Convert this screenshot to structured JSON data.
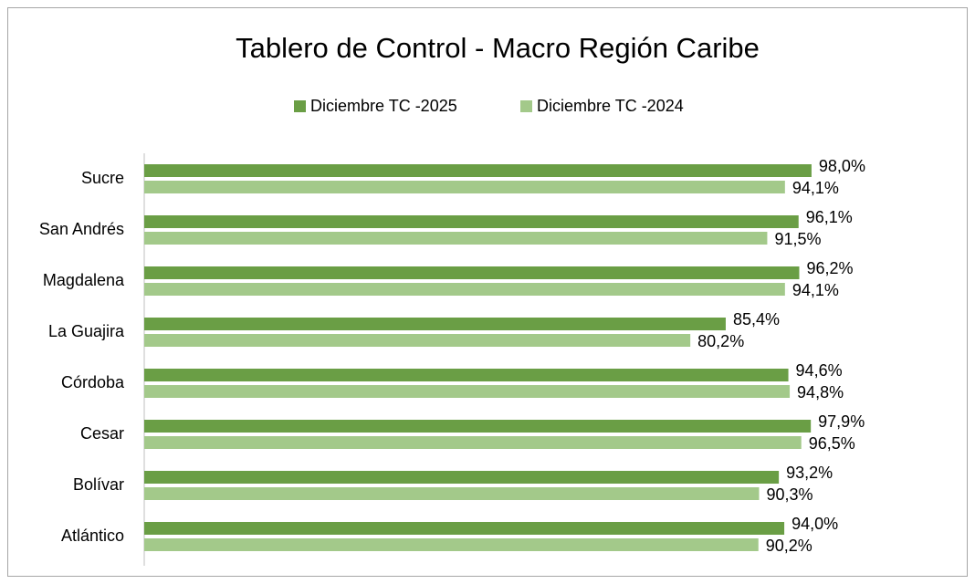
{
  "chart_data": {
    "type": "bar",
    "orientation": "horizontal",
    "title": "Tablero de Control - Macro Región Caribe",
    "categories": [
      "Sucre",
      "San Andrés",
      "Magdalena",
      "La Guajira",
      "Córdoba",
      "Cesar",
      "Bolívar",
      "Atlántico"
    ],
    "series": [
      {
        "name": "Diciembre TC -2025",
        "color": "#6a9e45",
        "values": [
          98.0,
          96.1,
          96.2,
          85.4,
          94.6,
          97.9,
          93.2,
          94.0
        ],
        "value_labels": [
          "98,0%",
          "96,1%",
          "96,2%",
          "85,4%",
          "94,6%",
          "97,9%",
          "93,2%",
          "94,0%"
        ]
      },
      {
        "name": "Diciembre TC -2024",
        "color": "#a3c98a",
        "values": [
          94.1,
          91.5,
          94.1,
          80.2,
          94.8,
          96.5,
          90.3,
          90.2
        ],
        "value_labels": [
          "94,1%",
          "91,5%",
          "94,1%",
          "80,2%",
          "94,8%",
          "96,5%",
          "90,3%",
          "90,2%"
        ]
      }
    ],
    "xlim": [
      0,
      120
    ],
    "legend": "top"
  }
}
